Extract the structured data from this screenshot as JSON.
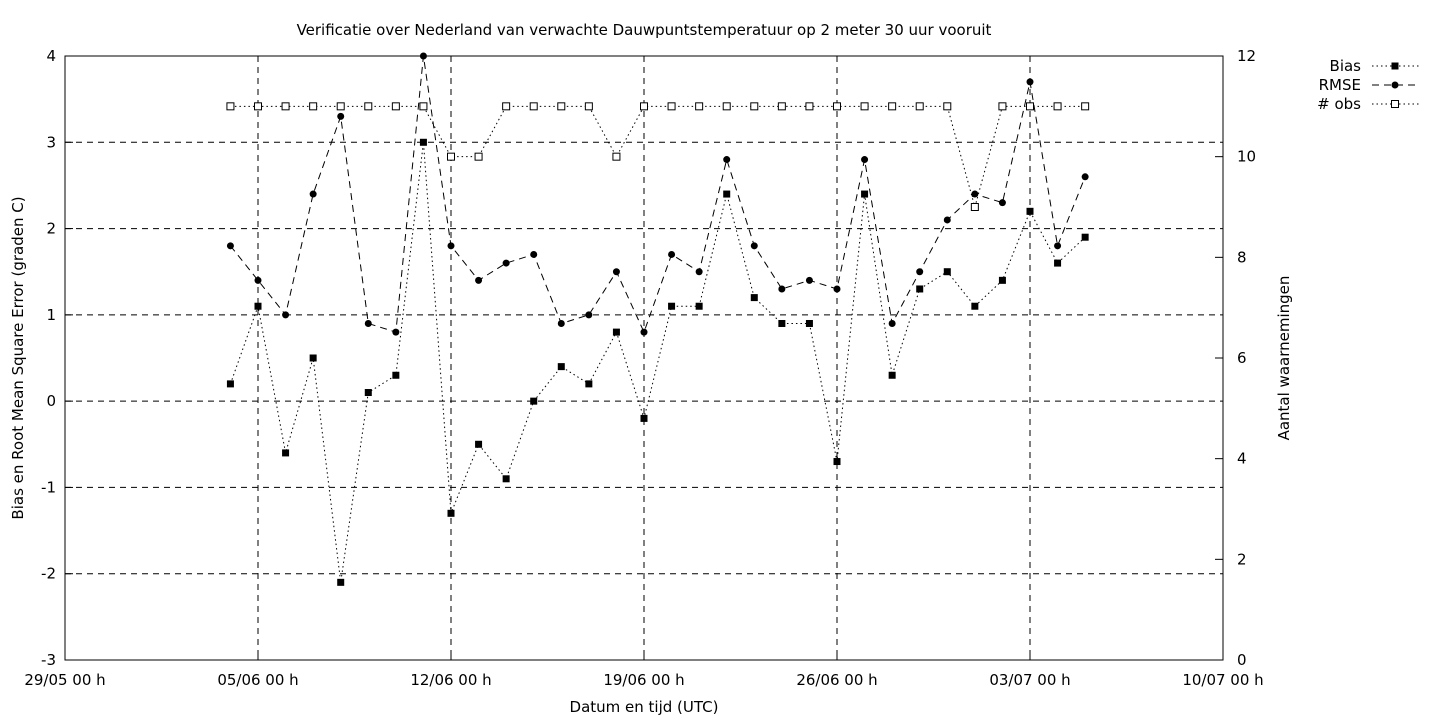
{
  "chart_data": {
    "type": "line",
    "title": "Verificatie over Nederland van verwachte Dauwpuntstemperatuur op 2 meter 30 uur vooruit",
    "xlabel": "Datum en tijd (UTC)",
    "ylabel": "Bias en Root Mean Square Error (graden C)",
    "y2label": "Aantal waarnemingen",
    "grid": true,
    "legend": "top-right",
    "x_unit": "day",
    "x_ticks": [
      {
        "day": 0,
        "label": "29/05 00 h"
      },
      {
        "day": 7,
        "label": "05/06 00 h"
      },
      {
        "day": 14,
        "label": "12/06 00 h"
      },
      {
        "day": 21,
        "label": "19/06 00 h"
      },
      {
        "day": 28,
        "label": "26/06 00 h"
      },
      {
        "day": 35,
        "label": "03/07 00 h"
      },
      {
        "day": 42,
        "label": "10/07 00 h"
      }
    ],
    "xlim": [
      0,
      42
    ],
    "ylim": [
      -3,
      4
    ],
    "y2lim": [
      0,
      12
    ],
    "y_ticks": [
      "-3",
      "-2",
      "-1",
      "0",
      "1",
      "2",
      "3",
      "4"
    ],
    "y2_ticks": [
      "0",
      "2",
      "4",
      "6",
      "8",
      "10",
      "12"
    ],
    "x": [
      6,
      7,
      8,
      9,
      10,
      11,
      12,
      13,
      14,
      15,
      16,
      17,
      18,
      19,
      20,
      21,
      22,
      23,
      24,
      25,
      26,
      27,
      28,
      29,
      30,
      31,
      32,
      33,
      34,
      35,
      36,
      37
    ],
    "series": [
      {
        "name": "Bias",
        "axis": "left",
        "line": "dotted",
        "marker": "filled-square",
        "values": [
          0.2,
          1.1,
          -0.6,
          0.5,
          -2.1,
          0.1,
          0.3,
          3.0,
          -1.3,
          -0.5,
          -0.9,
          0.0,
          0.4,
          0.2,
          0.8,
          -0.2,
          1.1,
          1.1,
          2.4,
          1.2,
          0.9,
          0.9,
          -0.7,
          2.4,
          0.3,
          1.3,
          1.5,
          1.1,
          1.4,
          2.2,
          1.6,
          1.9
        ]
      },
      {
        "name": "RMSE",
        "axis": "left",
        "line": "dashed",
        "marker": "filled-circle",
        "values": [
          1.8,
          1.4,
          1.0,
          2.4,
          3.3,
          0.9,
          0.8,
          4.0,
          1.8,
          1.4,
          1.6,
          1.7,
          0.9,
          1.0,
          1.5,
          0.8,
          1.7,
          1.5,
          2.8,
          1.8,
          1.3,
          1.4,
          1.3,
          2.8,
          0.9,
          1.5,
          2.1,
          2.4,
          2.3,
          3.7,
          1.8,
          2.6
        ]
      },
      {
        "name": "# obs",
        "axis": "right",
        "line": "dotted",
        "marker": "open-square",
        "values": [
          11,
          11,
          11,
          11,
          11,
          11,
          11,
          11,
          10,
          10,
          11,
          11,
          11,
          11,
          10,
          11,
          11,
          11,
          11,
          11,
          11,
          11,
          11,
          11,
          11,
          11,
          11,
          9,
          11,
          11,
          11,
          11
        ]
      }
    ]
  }
}
